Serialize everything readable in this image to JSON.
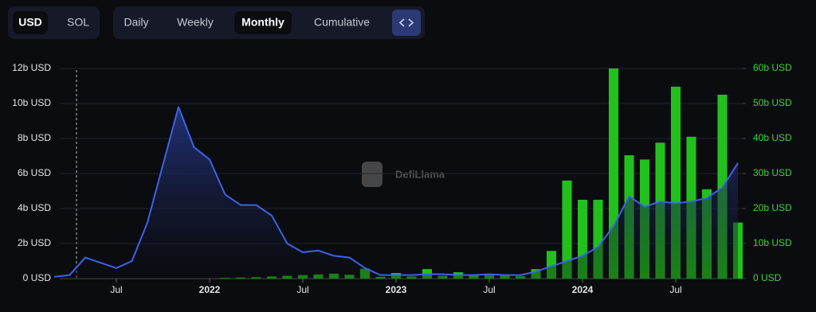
{
  "controls": {
    "currencies": [
      "USD",
      "SOL"
    ],
    "active_currency": "USD",
    "periods": [
      "Daily",
      "Weekly",
      "Monthly",
      "Cumulative"
    ],
    "active_period": "Monthly"
  },
  "watermark": "DefiLlama",
  "chart_data": {
    "type": "bar-line",
    "x": [
      "2021-03",
      "2021-04",
      "2021-05",
      "2021-06",
      "2021-07",
      "2021-08",
      "2021-09",
      "2021-10",
      "2021-11",
      "2021-12",
      "2022-01",
      "2022-02",
      "2022-03",
      "2022-04",
      "2022-05",
      "2022-06",
      "2022-07",
      "2022-08",
      "2022-09",
      "2022-10",
      "2022-11",
      "2022-12",
      "2023-01",
      "2023-02",
      "2023-03",
      "2023-04",
      "2023-05",
      "2023-06",
      "2023-07",
      "2023-08",
      "2023-09",
      "2023-10",
      "2023-11",
      "2023-12",
      "2024-01",
      "2024-02",
      "2024-03",
      "2024-04",
      "2024-05",
      "2024-06",
      "2024-07",
      "2024-08",
      "2024-09",
      "2024-10",
      "2024-11"
    ],
    "xlim": [
      "2021-03",
      "2024-12"
    ],
    "xticks": [
      {
        "value": "2021-07",
        "label": "Jul"
      },
      {
        "value": "2022-01",
        "label": "2022"
      },
      {
        "value": "2022-07",
        "label": "Jul"
      },
      {
        "value": "2023-01",
        "label": "2023"
      },
      {
        "value": "2023-07",
        "label": "Jul"
      },
      {
        "value": "2024-01",
        "label": "2024"
      },
      {
        "value": "2024-07",
        "label": "Jul"
      }
    ],
    "ylim": [
      0,
      12
    ],
    "yticks": [
      {
        "value": 0,
        "label": "0 USD"
      },
      {
        "value": 2,
        "label": "2b USD"
      },
      {
        "value": 4,
        "label": "4b USD"
      },
      {
        "value": 6,
        "label": "6b USD"
      },
      {
        "value": 8,
        "label": "8b USD"
      },
      {
        "value": 10,
        "label": "10b USD"
      },
      {
        "value": 12,
        "label": "12b USD"
      }
    ],
    "y2lim": [
      0,
      60
    ],
    "y2ticks": [
      {
        "value": 0,
        "label": "0 USD"
      },
      {
        "value": 10,
        "label": "10b USD"
      },
      {
        "value": 20,
        "label": "20b USD"
      },
      {
        "value": 30,
        "label": "30b USD"
      },
      {
        "value": 40,
        "label": "40b USD"
      },
      {
        "value": 50,
        "label": "50b USD"
      },
      {
        "value": 60,
        "label": "60b USD"
      }
    ],
    "grid": true,
    "series": [
      {
        "type": "line",
        "color": "#3c63e8",
        "values": [
          0.1,
          0.2,
          1.2,
          0.9,
          0.6,
          1.0,
          3.2,
          6.5,
          9.8,
          7.5,
          6.8,
          4.8,
          4.2,
          4.2,
          3.6,
          2.0,
          1.5,
          1.6,
          1.3,
          1.2,
          0.6,
          0.2,
          0.2,
          0.2,
          0.25,
          0.25,
          0.2,
          0.2,
          0.25,
          0.2,
          0.2,
          0.4,
          0.7,
          1.0,
          1.3,
          1.8,
          3.0,
          4.7,
          4.1,
          4.4,
          4.3,
          4.4,
          4.6,
          5.2,
          6.6
        ]
      },
      {
        "type": "bar",
        "axis": "y2",
        "color": "#22c01c",
        "values": [
          null,
          null,
          null,
          null,
          null,
          null,
          null,
          null,
          null,
          null,
          null,
          0.2,
          0.3,
          0.4,
          0.6,
          0.8,
          1.0,
          1.2,
          1.4,
          1.1,
          2.8,
          0.5,
          1.6,
          0.6,
          2.7,
          0.8,
          1.8,
          1.0,
          1.0,
          0.9,
          0.7,
          2.7,
          7.9,
          28,
          22.5,
          22.5,
          60,
          35.2,
          34,
          38.8,
          54.8,
          40.5,
          25.5,
          52.5,
          16
        ]
      }
    ]
  }
}
